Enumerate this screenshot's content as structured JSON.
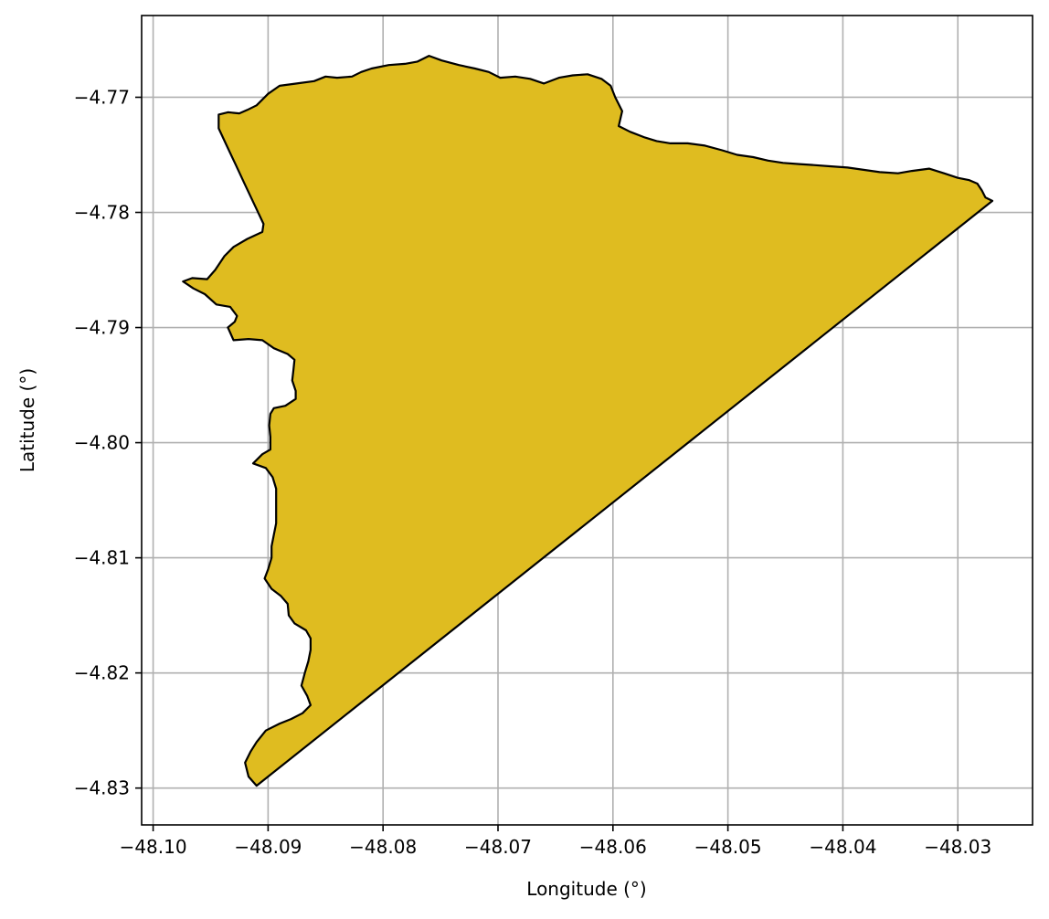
{
  "chart_data": {
    "type": "map",
    "title": "",
    "xlabel": "Longitude (°)",
    "ylabel": "Latitude (°)",
    "xlim": [
      -48.101,
      -48.0235
    ],
    "ylim": [
      -4.8332,
      -4.7629
    ],
    "grid": true,
    "x_ticks": [
      {
        "value": -48.1,
        "label": "−48.10"
      },
      {
        "value": -48.09,
        "label": "−48.09"
      },
      {
        "value": -48.08,
        "label": "−48.08"
      },
      {
        "value": -48.07,
        "label": "−48.07"
      },
      {
        "value": -48.06,
        "label": "−48.06"
      },
      {
        "value": -48.05,
        "label": "−48.05"
      },
      {
        "value": -48.04,
        "label": "−48.04"
      },
      {
        "value": -48.03,
        "label": "−48.03"
      }
    ],
    "y_ticks": [
      {
        "value": -4.77,
        "label": "−4.77"
      },
      {
        "value": -4.78,
        "label": "−4.78"
      },
      {
        "value": -4.79,
        "label": "−4.79"
      },
      {
        "value": -4.8,
        "label": "−4.80"
      },
      {
        "value": -4.81,
        "label": "−4.81"
      },
      {
        "value": -4.82,
        "label": "−4.82"
      },
      {
        "value": -4.83,
        "label": "−4.83"
      }
    ],
    "region": {
      "fill_color": "#dfbc20",
      "edge_color": "#000000",
      "boundary": [
        [
          -48.091,
          -4.8298
        ],
        [
          -48.0917,
          -4.829
        ],
        [
          -48.092,
          -4.8278
        ],
        [
          -48.0915,
          -4.8268
        ],
        [
          -48.091,
          -4.826
        ],
        [
          -48.0902,
          -4.825
        ],
        [
          -48.089,
          -4.8244
        ],
        [
          -48.088,
          -4.824
        ],
        [
          -48.087,
          -4.8235
        ],
        [
          -48.0863,
          -4.8228
        ],
        [
          -48.0866,
          -4.822
        ],
        [
          -48.0871,
          -4.8211
        ],
        [
          -48.0868,
          -4.82
        ],
        [
          -48.0865,
          -4.819
        ],
        [
          -48.0863,
          -4.818
        ],
        [
          -48.0863,
          -4.817
        ],
        [
          -48.0867,
          -4.8163
        ],
        [
          -48.0877,
          -4.8157
        ],
        [
          -48.0882,
          -4.815
        ],
        [
          -48.0883,
          -4.814
        ],
        [
          -48.0889,
          -4.8133
        ],
        [
          -48.0897,
          -4.8127
        ],
        [
          -48.0903,
          -4.8118
        ],
        [
          -48.09,
          -4.811
        ],
        [
          -48.0897,
          -4.81
        ],
        [
          -48.0897,
          -4.809
        ],
        [
          -48.0895,
          -4.808
        ],
        [
          -48.0893,
          -4.807
        ],
        [
          -48.0893,
          -4.806
        ],
        [
          -48.0893,
          -4.805
        ],
        [
          -48.0893,
          -4.804
        ],
        [
          -48.0896,
          -4.803
        ],
        [
          -48.0902,
          -4.8022
        ],
        [
          -48.0913,
          -4.8018
        ],
        [
          -48.0905,
          -4.801
        ],
        [
          -48.0898,
          -4.8006
        ],
        [
          -48.0898,
          -4.7995
        ],
        [
          -48.0899,
          -4.7985
        ],
        [
          -48.0898,
          -4.7975
        ],
        [
          -48.0895,
          -4.797
        ],
        [
          -48.0885,
          -4.7968
        ],
        [
          -48.0876,
          -4.7962
        ],
        [
          -48.0876,
          -4.7955
        ],
        [
          -48.0879,
          -4.7946
        ],
        [
          -48.0878,
          -4.7937
        ],
        [
          -48.0877,
          -4.7928
        ],
        [
          -48.0883,
          -4.7923
        ],
        [
          -48.0895,
          -4.7918
        ],
        [
          -48.0905,
          -4.7911
        ],
        [
          -48.0917,
          -4.791
        ],
        [
          -48.093,
          -4.7911
        ],
        [
          -48.0935,
          -4.79
        ],
        [
          -48.0929,
          -4.7895
        ],
        [
          -48.0927,
          -4.789
        ],
        [
          -48.0933,
          -4.7882
        ],
        [
          -48.0945,
          -4.788
        ],
        [
          -48.0955,
          -4.7871
        ],
        [
          -48.0965,
          -4.7866
        ],
        [
          -48.0974,
          -4.786
        ],
        [
          -48.0966,
          -4.7857
        ],
        [
          -48.0953,
          -4.7858
        ],
        [
          -48.0946,
          -4.785
        ],
        [
          -48.0938,
          -4.7838
        ],
        [
          -48.093,
          -4.783
        ],
        [
          -48.0918,
          -4.7823
        ],
        [
          -48.0905,
          -4.7817
        ],
        [
          -48.0904,
          -4.781
        ],
        [
          -48.0912,
          -4.7793
        ],
        [
          -48.092,
          -4.7776
        ],
        [
          -48.0928,
          -4.7759
        ],
        [
          -48.0936,
          -4.7742
        ],
        [
          -48.0943,
          -4.7727
        ],
        [
          -48.0943,
          -4.7715
        ],
        [
          -48.0935,
          -4.7713
        ],
        [
          -48.0925,
          -4.7714
        ],
        [
          -48.0918,
          -4.7711
        ],
        [
          -48.091,
          -4.7707
        ],
        [
          -48.09,
          -4.7697
        ],
        [
          -48.089,
          -4.769
        ],
        [
          -48.0875,
          -4.7688
        ],
        [
          -48.086,
          -4.7686
        ],
        [
          -48.085,
          -4.7682
        ],
        [
          -48.084,
          -4.7683
        ],
        [
          -48.0827,
          -4.7682
        ],
        [
          -48.0819,
          -4.7678
        ],
        [
          -48.081,
          -4.7675
        ],
        [
          -48.0795,
          -4.7672
        ],
        [
          -48.0781,
          -4.7671
        ],
        [
          -48.077,
          -4.7669
        ],
        [
          -48.076,
          -4.7664
        ],
        [
          -48.0749,
          -4.7668
        ],
        [
          -48.0734,
          -4.7672
        ],
        [
          -48.072,
          -4.7675
        ],
        [
          -48.0708,
          -4.7678
        ],
        [
          -48.0698,
          -4.7683
        ],
        [
          -48.0685,
          -4.7682
        ],
        [
          -48.0672,
          -4.7684
        ],
        [
          -48.066,
          -4.7688
        ],
        [
          -48.0647,
          -4.7683
        ],
        [
          -48.0635,
          -4.7681
        ],
        [
          -48.0622,
          -4.768
        ],
        [
          -48.061,
          -4.7684
        ],
        [
          -48.0602,
          -4.769
        ],
        [
          -48.0598,
          -4.77
        ],
        [
          -48.0592,
          -4.7712
        ],
        [
          -48.0595,
          -4.7725
        ],
        [
          -48.0585,
          -4.773
        ],
        [
          -48.0572,
          -4.7735
        ],
        [
          -48.0562,
          -4.7738
        ],
        [
          -48.055,
          -4.774
        ],
        [
          -48.0535,
          -4.774
        ],
        [
          -48.052,
          -4.7742
        ],
        [
          -48.0505,
          -4.7746
        ],
        [
          -48.0492,
          -4.775
        ],
        [
          -48.0478,
          -4.7752
        ],
        [
          -48.0465,
          -4.7755
        ],
        [
          -48.0452,
          -4.7757
        ],
        [
          -48.0438,
          -4.7758
        ],
        [
          -48.0424,
          -4.7759
        ],
        [
          -48.041,
          -4.776
        ],
        [
          -48.0396,
          -4.7761
        ],
        [
          -48.0382,
          -4.7763
        ],
        [
          -48.0368,
          -4.7765
        ],
        [
          -48.0352,
          -4.7766
        ],
        [
          -48.034,
          -4.7764
        ],
        [
          -48.0325,
          -4.7762
        ],
        [
          -48.0312,
          -4.7766
        ],
        [
          -48.03,
          -4.777
        ],
        [
          -48.029,
          -4.7772
        ],
        [
          -48.0283,
          -4.7775
        ],
        [
          -48.0279,
          -4.7781
        ],
        [
          -48.0276,
          -4.7787
        ],
        [
          -48.027,
          -4.779
        ],
        [
          -48.091,
          -4.8298
        ]
      ]
    }
  }
}
